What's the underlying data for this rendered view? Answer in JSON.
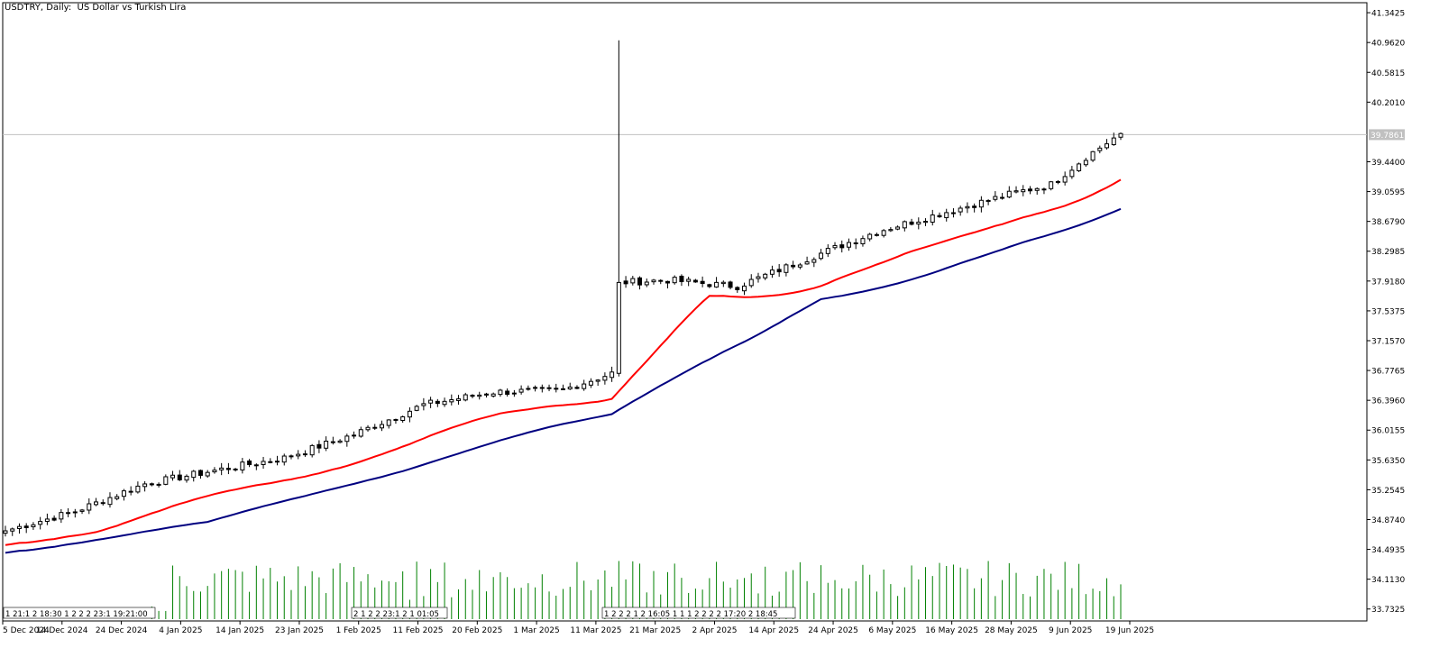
{
  "chart_data": {
    "type": "candlestick",
    "title": "USDTRY, Daily:  US Dollar vs Turkish Lira",
    "symbol": "USDTRY",
    "timeframe": "Daily",
    "description": "US Dollar vs Turkish Lira",
    "ylim": [
      33.5,
      41.5
    ],
    "current_price": "39.7861",
    "y_ticks": [
      "41.3425",
      "40.9620",
      "40.5815",
      "40.2010",
      "39.4400",
      "39.0595",
      "38.6790",
      "38.2985",
      "37.9180",
      "37.5375",
      "37.1570",
      "36.7765",
      "36.3960",
      "36.0155",
      "35.6350",
      "35.2545",
      "34.8740",
      "34.4935",
      "34.1130",
      "33.7325"
    ],
    "x_labels": [
      "5 Dec 2024",
      "14 Dec 2024",
      "24 Dec 2024",
      "4 Jan 2025",
      "14 Jan 2025",
      "23 Jan 2025",
      "1 Feb 2025",
      "11 Feb 2025",
      "20 Feb 2025",
      "1 Mar 2025",
      "11 Mar 2025",
      "21 Mar 2025",
      "2 Apr 2025",
      "14 Apr 2025",
      "24 Apr 2025",
      "6 May 2025",
      "16 May 2025",
      "28 May 2025",
      "9 Jun 2025",
      "19 Jun 2025"
    ],
    "gap_markers": [
      {
        "text": "1 21:1 2 18:30 1 2 2 2 23:1 19:21:00"
      },
      {
        "text": "2 1 2 2 23:1 2 1 01:05"
      },
      {
        "text": "1 2 2 2 1 2 16:05 1 1 1 2 2 2 2 17:20 2 18:45"
      }
    ],
    "anchors": [
      {
        "i": 0,
        "v": 34.73
      },
      {
        "i": 10,
        "v": 34.98
      },
      {
        "i": 20,
        "v": 35.33
      },
      {
        "i": 30,
        "v": 35.5
      },
      {
        "i": 40,
        "v": 35.66
      },
      {
        "i": 50,
        "v": 35.96
      },
      {
        "i": 60,
        "v": 36.34
      },
      {
        "i": 70,
        "v": 36.5
      },
      {
        "i": 80,
        "v": 36.53
      },
      {
        "i": 87,
        "v": 36.74
      },
      {
        "i": 88,
        "v": 37.9
      },
      {
        "i": 95,
        "v": 37.93
      },
      {
        "i": 105,
        "v": 37.85
      },
      {
        "i": 115,
        "v": 38.2
      },
      {
        "i": 125,
        "v": 38.55
      },
      {
        "i": 135,
        "v": 38.8
      },
      {
        "i": 145,
        "v": 39.05
      },
      {
        "i": 150,
        "v": 39.15
      },
      {
        "i": 155,
        "v": 39.5
      },
      {
        "i": 160,
        "v": 39.8
      }
    ],
    "spike": {
      "index": 88,
      "high": 40.99,
      "open": 36.74,
      "close": 37.9,
      "low": 36.7
    },
    "moving_averages": [
      {
        "color": "#ff0000",
        "period": "short"
      },
      {
        "color": "#000080",
        "period": "long"
      }
    ],
    "volume": {
      "color": "#008000"
    }
  }
}
